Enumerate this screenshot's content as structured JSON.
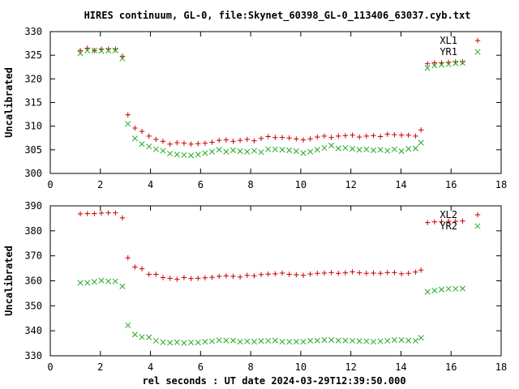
{
  "title": "HIRES continuum, GL-0, file:Skynet_60398_GL-0_113406_63037.cyb.txt",
  "xlabel": "rel seconds : UT date 2024-03-29T12:39:50.000",
  "colors": {
    "series1": "#cc0000",
    "series2": "#22aa22",
    "frame": "#000000"
  },
  "chart_data": [
    {
      "type": "scatter",
      "ylabel": "Uncalibrated",
      "xlim": [
        0,
        18
      ],
      "ylim": [
        300,
        330
      ],
      "xticks": [
        0,
        2,
        4,
        6,
        8,
        10,
        12,
        14,
        16,
        18
      ],
      "yticks": [
        300,
        305,
        310,
        315,
        320,
        325,
        330
      ],
      "legend_position": "top-right",
      "series": [
        {
          "name": "XL1",
          "marker": "plus",
          "x": [
            1.2,
            1.48,
            1.76,
            2.04,
            2.32,
            2.6,
            2.88,
            3.1,
            3.38,
            3.66,
            3.94,
            4.22,
            4.5,
            4.78,
            5.06,
            5.34,
            5.62,
            5.9,
            6.18,
            6.46,
            6.74,
            7.02,
            7.3,
            7.58,
            7.86,
            8.14,
            8.42,
            8.7,
            8.98,
            9.26,
            9.54,
            9.82,
            10.1,
            10.38,
            10.66,
            10.94,
            11.22,
            11.5,
            11.78,
            12.06,
            12.34,
            12.62,
            12.9,
            13.18,
            13.46,
            13.74,
            14.02,
            14.3,
            14.58,
            14.8,
            15.06,
            15.34,
            15.62,
            15.9,
            16.18,
            16.46
          ],
          "values": [
            326.0,
            326.5,
            326.0,
            326.3,
            326.3,
            326.3,
            324.8,
            312.4,
            309.6,
            308.9,
            307.9,
            307.2,
            306.8,
            306.2,
            306.5,
            306.4,
            306.2,
            306.3,
            306.4,
            306.6,
            307.0,
            307.1,
            306.8,
            307.0,
            307.2,
            306.9,
            307.4,
            307.8,
            307.6,
            307.6,
            307.5,
            307.3,
            307.1,
            307.3,
            307.7,
            307.9,
            307.6,
            307.9,
            308.0,
            308.1,
            307.7,
            307.9,
            308.0,
            307.8,
            308.3,
            308.2,
            308.1,
            308.1,
            307.9,
            309.2,
            323.2,
            323.4,
            323.4,
            323.5,
            323.6,
            323.6
          ]
        },
        {
          "name": "YR1",
          "marker": "cross",
          "x": [
            1.2,
            1.48,
            1.76,
            2.04,
            2.32,
            2.6,
            2.88,
            3.1,
            3.38,
            3.66,
            3.94,
            4.22,
            4.5,
            4.78,
            5.06,
            5.34,
            5.62,
            5.9,
            6.18,
            6.46,
            6.74,
            7.02,
            7.3,
            7.58,
            7.86,
            8.14,
            8.42,
            8.7,
            8.98,
            9.26,
            9.54,
            9.82,
            10.1,
            10.38,
            10.66,
            10.94,
            11.22,
            11.5,
            11.78,
            12.06,
            12.34,
            12.62,
            12.9,
            13.18,
            13.46,
            13.74,
            14.02,
            14.3,
            14.58,
            14.8,
            15.06,
            15.34,
            15.62,
            15.9,
            16.18,
            16.46
          ],
          "values": [
            325.4,
            326.0,
            326.0,
            325.9,
            326.0,
            326.0,
            324.3,
            310.5,
            307.4,
            306.2,
            305.7,
            305.1,
            304.8,
            304.2,
            304.0,
            303.9,
            303.8,
            304.0,
            304.3,
            304.6,
            305.0,
            304.6,
            304.9,
            304.7,
            304.6,
            304.8,
            304.5,
            305.1,
            305.1,
            305.0,
            304.9,
            304.7,
            304.3,
            304.6,
            305.0,
            305.4,
            305.9,
            305.3,
            305.4,
            305.2,
            305.0,
            305.1,
            304.9,
            305.0,
            304.8,
            305.1,
            304.7,
            305.2,
            305.3,
            306.5,
            322.3,
            322.8,
            323.0,
            323.1,
            323.3,
            323.4
          ]
        }
      ]
    },
    {
      "type": "scatter",
      "ylabel": "Uncalibrated",
      "xlim": [
        0,
        18
      ],
      "ylim": [
        330,
        390
      ],
      "xticks": [
        0,
        2,
        4,
        6,
        8,
        10,
        12,
        14,
        16,
        18
      ],
      "yticks": [
        330,
        340,
        350,
        360,
        370,
        380,
        390
      ],
      "legend_position": "top-right",
      "series": [
        {
          "name": "XL2",
          "marker": "plus",
          "x": [
            1.2,
            1.48,
            1.76,
            2.04,
            2.32,
            2.6,
            2.88,
            3.1,
            3.38,
            3.66,
            3.94,
            4.22,
            4.5,
            4.78,
            5.06,
            5.34,
            5.62,
            5.9,
            6.18,
            6.46,
            6.74,
            7.02,
            7.3,
            7.58,
            7.86,
            8.14,
            8.42,
            8.7,
            8.98,
            9.26,
            9.54,
            9.82,
            10.1,
            10.38,
            10.66,
            10.94,
            11.22,
            11.5,
            11.78,
            12.06,
            12.34,
            12.62,
            12.9,
            13.18,
            13.46,
            13.74,
            14.02,
            14.3,
            14.58,
            14.8,
            15.06,
            15.34,
            15.62,
            15.9,
            16.18,
            16.46
          ],
          "values": [
            386.8,
            386.9,
            386.9,
            387.1,
            387.2,
            387.2,
            385.2,
            369.2,
            365.5,
            364.8,
            362.6,
            362.6,
            361.3,
            361.0,
            360.6,
            361.3,
            360.9,
            361.0,
            361.2,
            361.4,
            361.8,
            362.0,
            361.8,
            361.5,
            362.2,
            362.0,
            362.5,
            362.7,
            362.8,
            363.1,
            362.6,
            362.4,
            362.2,
            362.7,
            363.0,
            363.1,
            363.3,
            363.0,
            363.2,
            363.6,
            363.2,
            363.0,
            363.1,
            363.0,
            363.3,
            363.3,
            362.8,
            363.0,
            363.5,
            364.3,
            383.3,
            383.6,
            383.7,
            383.8,
            383.8,
            383.9
          ]
        },
        {
          "name": "YR2",
          "marker": "cross",
          "x": [
            1.2,
            1.48,
            1.76,
            2.04,
            2.32,
            2.6,
            2.88,
            3.1,
            3.38,
            3.66,
            3.94,
            4.22,
            4.5,
            4.78,
            5.06,
            5.34,
            5.62,
            5.9,
            6.18,
            6.46,
            6.74,
            7.02,
            7.3,
            7.58,
            7.86,
            8.14,
            8.42,
            8.7,
            8.98,
            9.26,
            9.54,
            9.82,
            10.1,
            10.38,
            10.66,
            10.94,
            11.22,
            11.5,
            11.78,
            12.06,
            12.34,
            12.62,
            12.9,
            13.18,
            13.46,
            13.74,
            14.02,
            14.3,
            14.58,
            14.8,
            15.06,
            15.34,
            15.62,
            15.9,
            16.18,
            16.46
          ],
          "values": [
            359.2,
            359.2,
            359.6,
            360.1,
            359.8,
            359.8,
            357.8,
            342.2,
            338.5,
            337.5,
            337.4,
            336.0,
            335.4,
            335.2,
            335.4,
            335.1,
            335.3,
            335.3,
            335.6,
            335.8,
            336.2,
            336.1,
            336.1,
            335.6,
            335.8,
            335.6,
            335.9,
            336.0,
            336.1,
            335.6,
            335.6,
            335.6,
            335.6,
            336.0,
            336.1,
            336.3,
            336.3,
            336.1,
            336.1,
            336.0,
            335.9,
            335.8,
            335.6,
            335.8,
            336.0,
            336.3,
            336.3,
            336.1,
            336.0,
            337.2,
            355.6,
            356.1,
            356.5,
            356.8,
            356.8,
            356.9
          ]
        }
      ]
    }
  ]
}
